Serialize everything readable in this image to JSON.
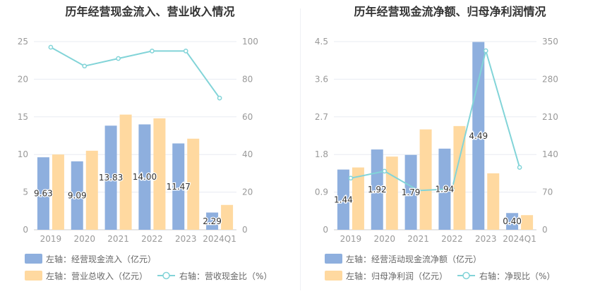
{
  "colors": {
    "bar1": "#8eafde",
    "bar2": "#ffd9a0",
    "line": "#82d4d8",
    "grid": "#e8ecf2",
    "axis": "#cccccc"
  },
  "chart_data": [
    {
      "type": "bar",
      "title": "历年经营现金流入、营业收入情况",
      "categories": [
        "2019",
        "2020",
        "2021",
        "2022",
        "2023",
        "2024Q1"
      ],
      "y_left": {
        "ylim": [
          0,
          25
        ],
        "ticks": [
          "0",
          "5",
          "10",
          "15",
          "20",
          "25"
        ]
      },
      "y_right": {
        "ylim": [
          0,
          100
        ],
        "ticks": [
          "0",
          "20",
          "40",
          "60",
          "80",
          "100"
        ]
      },
      "series": [
        {
          "name": "左轴：经营现金流入（亿元）",
          "type": "bar",
          "axis": "left",
          "values": [
            9.63,
            9.09,
            13.83,
            14.0,
            11.47,
            2.29
          ],
          "labels": [
            "9.63",
            "9.09",
            "13.83",
            "14.00",
            "11.47",
            "2.29"
          ]
        },
        {
          "name": "左轴：营业总收入（亿元）",
          "type": "bar",
          "axis": "left",
          "values": [
            10.0,
            10.5,
            15.3,
            14.8,
            12.1,
            3.3
          ]
        },
        {
          "name": "右轴：营收现金比（%）",
          "type": "line",
          "axis": "right",
          "values": [
            97,
            87,
            91,
            95,
            95,
            70
          ]
        }
      ]
    },
    {
      "type": "bar",
      "title": "历年经营现金流净额、归母净利润情况",
      "categories": [
        "2019",
        "2020",
        "2021",
        "2022",
        "2023",
        "2024Q1"
      ],
      "y_left": {
        "ylim": [
          0,
          4.5
        ],
        "ticks": [
          "0",
          "0.9",
          "1.8",
          "2.7",
          "3.6",
          "4.5"
        ]
      },
      "y_right": {
        "ylim": [
          0,
          350
        ],
        "ticks": [
          "0",
          "70",
          "140",
          "210",
          "280",
          "350"
        ]
      },
      "series": [
        {
          "name": "左轴：经营活动现金流净额（亿元）",
          "type": "bar",
          "axis": "left",
          "values": [
            1.44,
            1.92,
            1.79,
            1.94,
            4.49,
            0.4
          ],
          "labels": [
            "1.44",
            "1.92",
            "1.79",
            "1.94",
            "4.49",
            "0.40"
          ]
        },
        {
          "name": "左轴：归母净利润（亿元）",
          "type": "bar",
          "axis": "left",
          "values": [
            1.49,
            1.75,
            2.4,
            2.48,
            1.35,
            0.35
          ]
        },
        {
          "name": "右轴：净现比（%）",
          "type": "line",
          "axis": "right",
          "values": [
            96,
            109,
            73,
            76,
            333,
            116
          ]
        }
      ]
    }
  ]
}
